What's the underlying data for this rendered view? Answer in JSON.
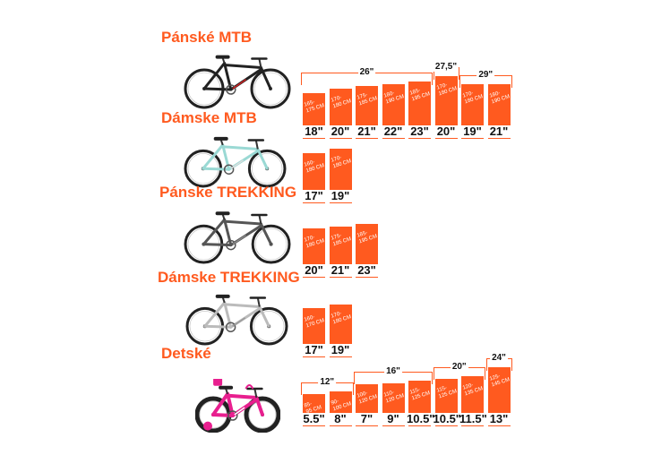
{
  "sections": [
    {
      "title": "Pánské MTB",
      "bike_color": "#222222",
      "bike_accent": "#cc2222",
      "groups": [
        {
          "label": "26\"",
          "from": 0,
          "to": 4
        },
        {
          "label": "27,5\"",
          "from": 5,
          "to": 5
        },
        {
          "label": "29\"",
          "from": 6,
          "to": 7
        }
      ],
      "bars": [
        {
          "range_top": "165-",
          "range_bottom": "175 CM",
          "size": "18\"",
          "height": 0.55
        },
        {
          "range_top": "170-",
          "range_bottom": "180 CM",
          "size": "20\"",
          "height": 0.62
        },
        {
          "range_top": "175-",
          "range_bottom": "185 CM",
          "size": "21\"",
          "height": 0.66
        },
        {
          "range_top": "180-",
          "range_bottom": "190 CM",
          "size": "22\"",
          "height": 0.7
        },
        {
          "range_top": "185-",
          "range_bottom": "195 CM",
          "size": "23\"",
          "height": 0.74
        },
        {
          "range_top": "170-",
          "range_bottom": "180 CM",
          "size": "20\"",
          "height": 0.84
        },
        {
          "range_top": "170-",
          "range_bottom": "180 CM",
          "size": "19\"",
          "height": 0.7
        },
        {
          "range_top": "180-",
          "range_bottom": "190 CM",
          "size": "21\"",
          "height": 0.7
        }
      ]
    },
    {
      "title": "Dámske MTB",
      "bike_color": "#9ad9d4",
      "bike_accent": "#dddddd",
      "groups": [],
      "bars": [
        {
          "range_top": "160-",
          "range_bottom": "180 CM",
          "size": "17\"",
          "height": 0.62
        },
        {
          "range_top": "170-",
          "range_bottom": "180 CM",
          "size": "19\"",
          "height": 0.7
        }
      ]
    },
    {
      "title": "Pánske TREKKING",
      "bike_color": "#555555",
      "bike_accent": "#888888",
      "groups": [],
      "bars": [
        {
          "range_top": "170-",
          "range_bottom": "180 CM",
          "size": "20\"",
          "height": 0.6
        },
        {
          "range_top": "175-",
          "range_bottom": "185 CM",
          "size": "21\"",
          "height": 0.64
        },
        {
          "range_top": "185-",
          "range_bottom": "195 CM",
          "size": "23\"",
          "height": 0.68
        }
      ]
    },
    {
      "title": "Dámske TREKKING",
      "bike_color": "#bbbbbb",
      "bike_accent": "#999999",
      "groups": [],
      "bars": [
        {
          "range_top": "160-",
          "range_bottom": "170 CM",
          "size": "17\"",
          "height": 0.6
        },
        {
          "range_top": "170-",
          "range_bottom": "180 CM",
          "size": "19\"",
          "height": 0.66
        }
      ]
    },
    {
      "title": "Detské",
      "bike_color": "#e81f8f",
      "bike_accent": "#ffffff",
      "groups": [
        {
          "label": "12\"",
          "from": 0,
          "to": 1
        },
        {
          "label": "16\"",
          "from": 2,
          "to": 4
        },
        {
          "label": "20\"",
          "from": 5,
          "to": 6
        },
        {
          "label": "24\"",
          "from": 7,
          "to": 7
        }
      ],
      "bars": [
        {
          "range_top": "85-",
          "range_bottom": "95 CM",
          "size": "5.5\"",
          "height": 0.32
        },
        {
          "range_top": "90-",
          "range_bottom": "100 CM",
          "size": "8\"",
          "height": 0.36
        },
        {
          "range_top": "100-",
          "range_bottom": "120 CM",
          "size": "7\"",
          "height": 0.48
        },
        {
          "range_top": "110-",
          "range_bottom": "120 CM",
          "size": "9\"",
          "height": 0.5
        },
        {
          "range_top": "115-",
          "range_bottom": "125 CM",
          "size": "10.5\"",
          "height": 0.54
        },
        {
          "range_top": "115-",
          "range_bottom": "125 CM",
          "size": "10.5\"",
          "height": 0.58
        },
        {
          "range_top": "120-",
          "range_bottom": "135 CM",
          "size": "11.5\"",
          "height": 0.62
        },
        {
          "range_top": "125-",
          "range_bottom": "145 CM",
          "size": "13\"",
          "height": 0.78
        }
      ]
    }
  ],
  "accent": "#ff5a1f"
}
